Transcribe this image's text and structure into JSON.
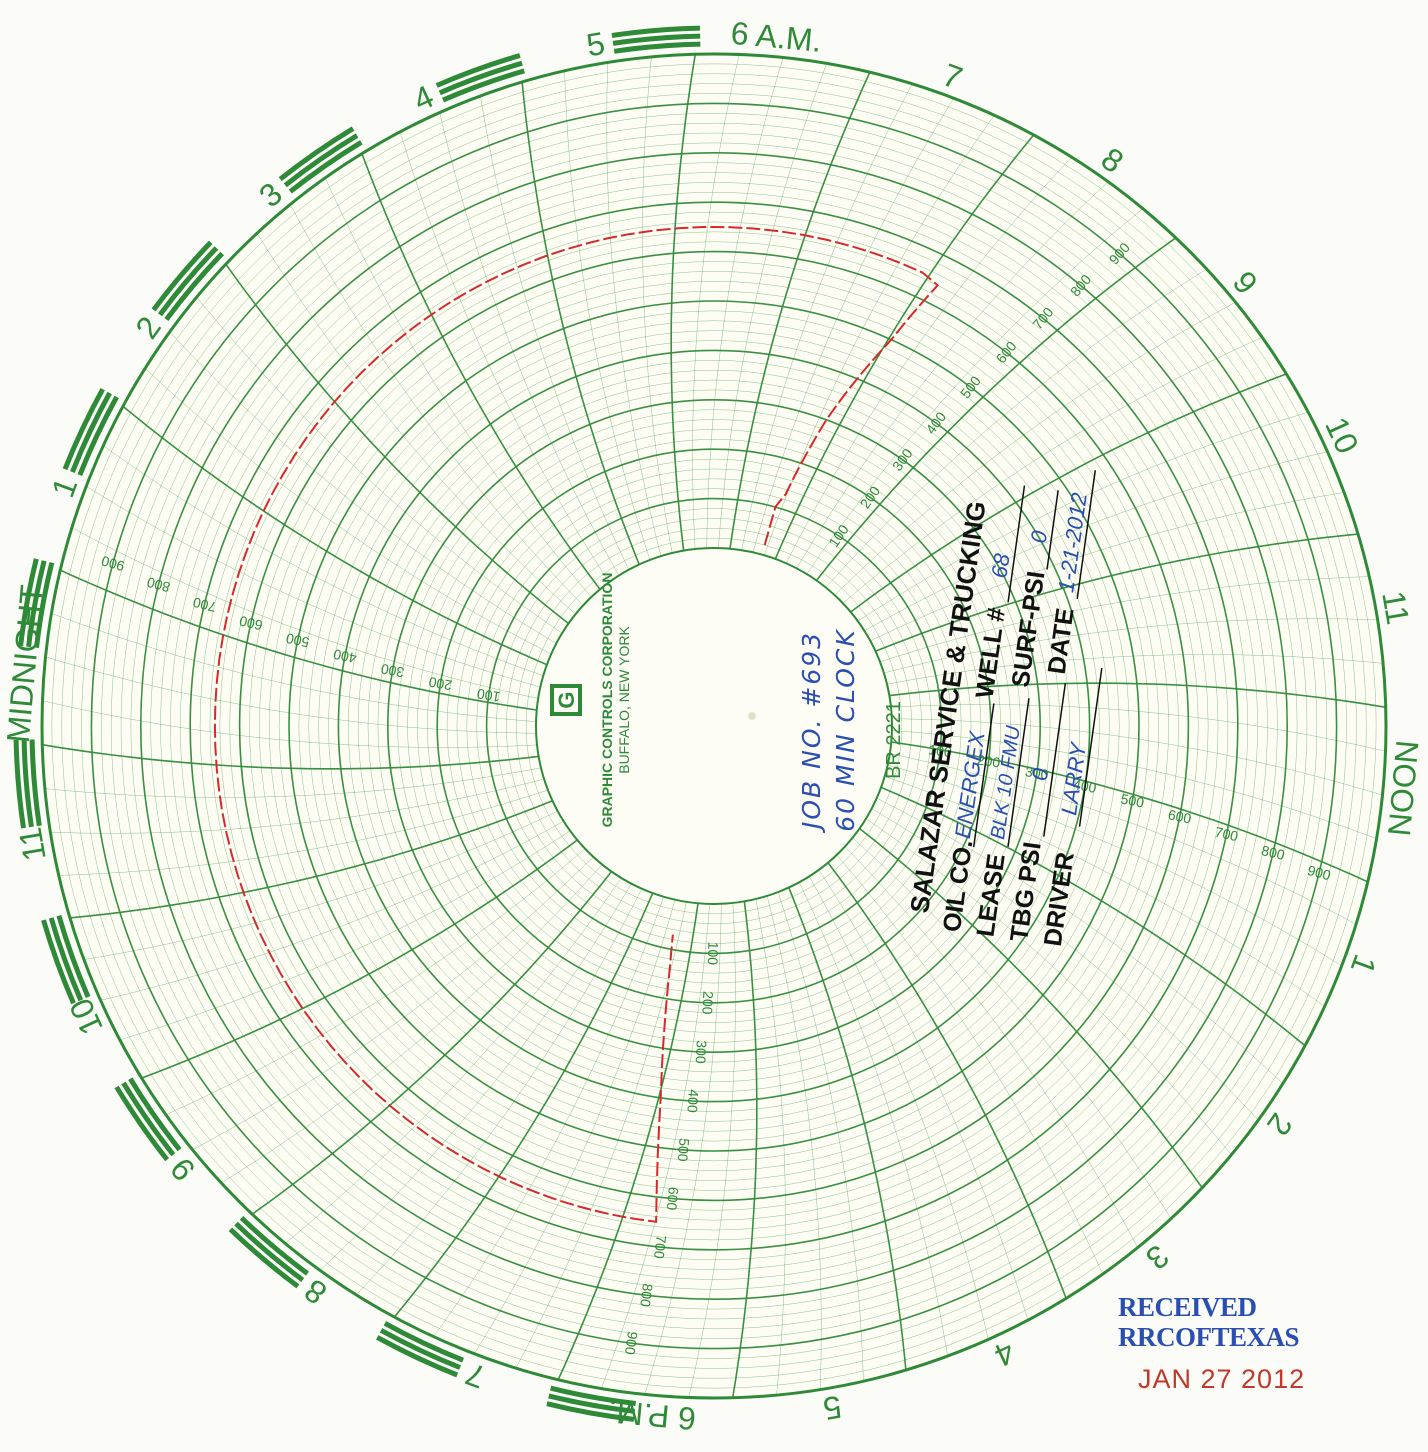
{
  "chart_data": {
    "type": "circular-chart",
    "hour_labels": [
      {
        "text": "MIDNIGHT",
        "hour": 0
      },
      {
        "text": "1",
        "hour": 1
      },
      {
        "text": "2",
        "hour": 2
      },
      {
        "text": "3",
        "hour": 3
      },
      {
        "text": "4",
        "hour": 4
      },
      {
        "text": "5",
        "hour": 5
      },
      {
        "text": "6 A.M.",
        "hour": 6
      },
      {
        "text": "7",
        "hour": 7
      },
      {
        "text": "8",
        "hour": 8
      },
      {
        "text": "9",
        "hour": 9
      },
      {
        "text": "10",
        "hour": 10
      },
      {
        "text": "11",
        "hour": 11
      },
      {
        "text": "NOON",
        "hour": 12
      },
      {
        "text": "1",
        "hour": 13
      },
      {
        "text": "2",
        "hour": 14
      },
      {
        "text": "3",
        "hour": 15
      },
      {
        "text": "4",
        "hour": 16
      },
      {
        "text": "5",
        "hour": 17
      },
      {
        "text": "6 P.M.",
        "hour": 18
      },
      {
        "text": "7",
        "hour": 19
      },
      {
        "text": "8",
        "hour": 20
      },
      {
        "text": "9",
        "hour": 21
      },
      {
        "text": "10",
        "hour": 22
      },
      {
        "text": "11",
        "hour": 23
      }
    ],
    "scale_labels": [
      "100",
      "200",
      "300",
      "400",
      "500",
      "600",
      "700",
      "800",
      "900"
    ],
    "scale_max": 1000,
    "pen_trace": [
      {
        "hour": 6.7,
        "value": 20
      },
      {
        "hour": 6.7,
        "value": 100
      },
      {
        "hour": 6.8,
        "value": 130
      },
      {
        "hour": 7.0,
        "value": 300
      },
      {
        "hour": 7.3,
        "value": 500
      },
      {
        "hour": 7.45,
        "value": 640
      },
      {
        "hour": 7.3,
        "value": 650
      },
      {
        "hour": 5.0,
        "value": 650
      },
      {
        "hour": 3.0,
        "value": 650
      },
      {
        "hour": 1.0,
        "value": 650
      },
      {
        "hour": 23.0,
        "value": 650
      },
      {
        "hour": 21.0,
        "value": 650
      },
      {
        "hour": 19.0,
        "value": 650
      },
      {
        "hour": 18.1,
        "value": 650
      },
      {
        "hour": 18.2,
        "value": 400
      },
      {
        "hour": 18.35,
        "value": 130
      },
      {
        "hour": 18.4,
        "value": 70
      }
    ],
    "pen_color": "#d62a2a",
    "grid_color": "#2f8a38"
  },
  "center": {
    "manufacturer": "GRAPHIC CONTROLS CORPORATION",
    "location": "BUFFALO, NEW YORK",
    "logo_letter": "G",
    "chart_no": "BR 2221"
  },
  "handwritten": {
    "job_no": "JOB NO. #693",
    "clock": "60 MIN CLOCK"
  },
  "form": {
    "company": "SALAZAR SERVICE & TRUCKING",
    "oil_co_label": "OIL CO.",
    "oil_co_value": "ENERGEX",
    "lease_label": "LEASE",
    "lease_value": "BLK 10 FMU",
    "well_label": "WELL #",
    "well_value": "68",
    "tbg_label": "TBG PSI",
    "tbg_value": "0",
    "surf_label": "SURF-PSI",
    "surf_value": "0",
    "driver_label": "DRIVER",
    "driver_value": "LARRY",
    "date_label": "DATE",
    "date_value": "1-21-2012"
  },
  "stamp": {
    "line1": "RECEIVED",
    "line2": "RRCOFTEXAS",
    "date": "JAN 27 2012",
    "color_blue": "#2a4fb0",
    "color_red": "#c0392b"
  }
}
